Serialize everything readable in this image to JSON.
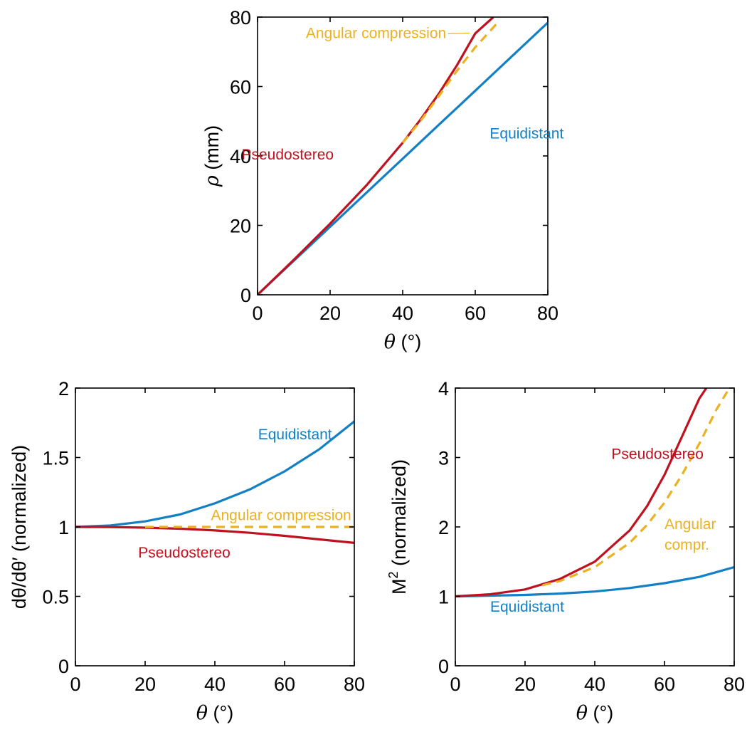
{
  "colors": {
    "equidistant": "#1380C6",
    "pseudostereo": "#C0111F",
    "angular": "#EBB120"
  },
  "chart_data": [
    {
      "type": "line",
      "xlabel_var": "θ",
      "xlabel_unit": " (°)",
      "ylabel_var": "ρ",
      "ylabel_unit": " (mm)",
      "xlim": [
        0,
        80
      ],
      "ylim": [
        0,
        80
      ],
      "xticks": [
        0,
        20,
        40,
        60,
        80
      ],
      "yticks": [
        0,
        20,
        40,
        60,
        80
      ],
      "grid": false,
      "series": [
        {
          "name": "Equidistant",
          "color": "#1380C6",
          "dashed": false,
          "x": [
            0,
            10,
            20,
            30,
            40,
            50,
            60,
            70,
            80
          ],
          "y": [
            0,
            9.8,
            19.6,
            29.4,
            39.2,
            49.0,
            58.8,
            68.6,
            78.4
          ]
        },
        {
          "name": "Pseudostereo",
          "color": "#C0111F",
          "dashed": false,
          "x": [
            0,
            10,
            20,
            30,
            40,
            45,
            50,
            55,
            60,
            65
          ],
          "y": [
            0,
            10.1,
            20.5,
            31.5,
            43.8,
            50.6,
            58.0,
            66.2,
            75.3,
            80
          ]
        },
        {
          "name": "Angular compression",
          "color": "#EBB120",
          "dashed": true,
          "x": [
            40,
            45,
            50,
            55,
            60,
            66
          ],
          "y": [
            43.8,
            50.2,
            57.3,
            64.6,
            71.3,
            78.2
          ]
        }
      ],
      "annotations": [
        {
          "text": "Angular compression",
          "series": "Angular compression",
          "x": 52,
          "y": 74
        },
        {
          "text": "Equidistant",
          "series": "Equidistant",
          "x": 64,
          "y": 45
        },
        {
          "text": "Pseudostereo",
          "series": "Pseudostereo",
          "x": 21,
          "y": 39
        }
      ]
    },
    {
      "type": "line",
      "xlabel_var": "θ",
      "xlabel_unit": " (°)",
      "ylabel_var": "dθ/dθ′",
      "ylabel_unit": " (normalized)",
      "xlim": [
        0,
        80
      ],
      "ylim": [
        0,
        2
      ],
      "xticks": [
        0,
        20,
        40,
        60,
        80
      ],
      "yticks": [
        0,
        0.5,
        1,
        1.5,
        2
      ],
      "grid": false,
      "series": [
        {
          "name": "Equidistant",
          "color": "#1380C6",
          "dashed": false,
          "x": [
            0,
            10,
            20,
            30,
            40,
            50,
            60,
            70,
            80
          ],
          "y": [
            1.0,
            1.01,
            1.04,
            1.09,
            1.17,
            1.27,
            1.4,
            1.56,
            1.76
          ]
        },
        {
          "name": "Pseudostereo",
          "color": "#C0111F",
          "dashed": false,
          "x": [
            0,
            10,
            20,
            30,
            40,
            50,
            60,
            70,
            80
          ],
          "y": [
            1.0,
            0.999,
            0.995,
            0.987,
            0.975,
            0.958,
            0.936,
            0.91,
            0.885
          ]
        },
        {
          "name": "Angular compression",
          "color": "#EBB120",
          "dashed": true,
          "x": [
            20,
            80
          ],
          "y": [
            1.0,
            1.0
          ]
        }
      ],
      "annotations": [
        {
          "text": "Equidistant",
          "series": "Equidistant",
          "x": 63,
          "y": 1.63
        },
        {
          "text": "Angular compression",
          "series": "Angular compression",
          "x": 59,
          "y": 1.05
        },
        {
          "text": "Pseudostereo",
          "series": "Pseudostereo",
          "x": 18,
          "y": 0.78
        }
      ]
    },
    {
      "type": "line",
      "xlabel_var": "θ",
      "xlabel_unit": " (°)",
      "ylabel_var": "M",
      "ylabel_sup": "2",
      "ylabel_unit": " (normalized)",
      "xlim": [
        0,
        80
      ],
      "ylim": [
        0,
        4
      ],
      "xticks": [
        0,
        20,
        40,
        60,
        80
      ],
      "yticks": [
        0,
        1,
        2,
        3,
        4
      ],
      "grid": false,
      "series": [
        {
          "name": "Equidistant",
          "color": "#1380C6",
          "dashed": false,
          "x": [
            0,
            10,
            20,
            30,
            40,
            50,
            60,
            70,
            80
          ],
          "y": [
            1.0,
            1.01,
            1.02,
            1.04,
            1.07,
            1.12,
            1.19,
            1.28,
            1.42
          ]
        },
        {
          "name": "Pseudostereo",
          "color": "#C0111F",
          "dashed": false,
          "x": [
            0,
            10,
            20,
            30,
            40,
            50,
            55,
            60,
            65,
            70,
            72
          ],
          "y": [
            1.0,
            1.03,
            1.1,
            1.25,
            1.5,
            1.95,
            2.3,
            2.75,
            3.3,
            3.85,
            4.0
          ]
        },
        {
          "name": "Angular compr.",
          "color": "#EBB120",
          "dashed": true,
          "x": [
            25,
            30,
            40,
            50,
            55,
            60,
            65,
            70,
            75,
            78
          ],
          "y": [
            1.16,
            1.22,
            1.42,
            1.77,
            2.03,
            2.35,
            2.75,
            3.2,
            3.7,
            3.95
          ]
        }
      ],
      "annotations": [
        {
          "text": "Pseudostereo",
          "series": "Pseudostereo",
          "x": 58,
          "y": 2.98
        },
        {
          "text": "Angular",
          "series": "Angular compr.",
          "x": 60,
          "y": 1.97
        },
        {
          "text": "compr.",
          "series": "Angular compr.",
          "x": 60,
          "y": 1.67
        },
        {
          "text": "Equidistant",
          "series": "Equidistant",
          "x": 10,
          "y": 0.78
        }
      ]
    }
  ]
}
